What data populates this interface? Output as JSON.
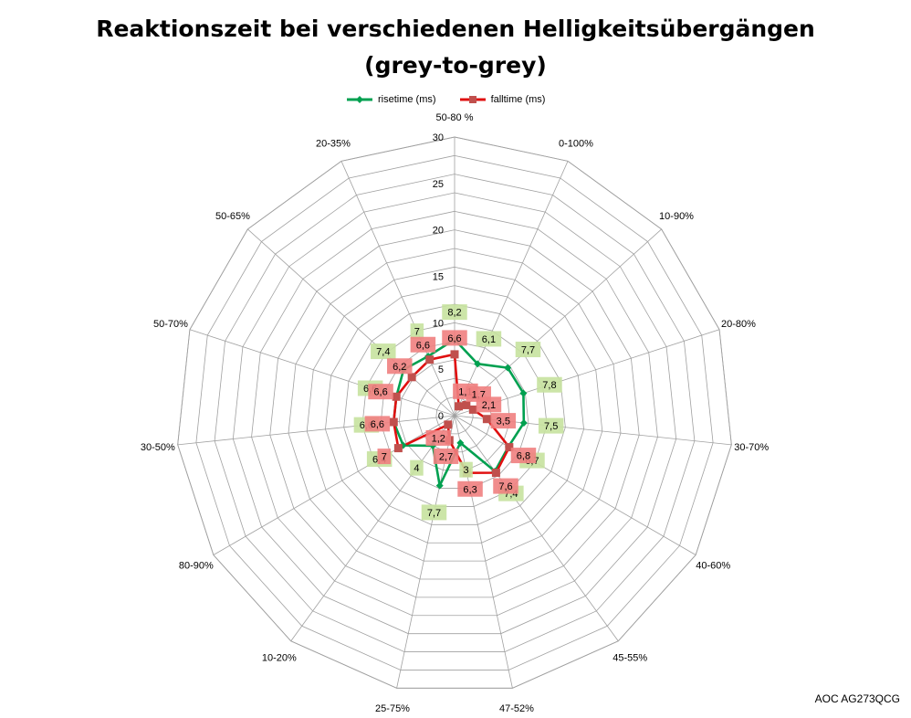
{
  "chart_data": {
    "type": "radar",
    "title": "Reaktionszeit bei verschiedenen Helligkeitsübergängen",
    "subtitle": "(grey-to-grey)",
    "categories": [
      "50-80 %",
      "0-100%",
      "10-90%",
      "20-80%",
      "30-70%",
      "40-60%",
      "45-55%",
      "47-52%",
      "25-75%",
      "10-20%",
      "80-90%",
      "30-50%",
      "50-70%",
      "50-65%",
      "20-35%"
    ],
    "series": [
      {
        "name": "risetime (ms)",
        "color": "#00a050",
        "marker": "diamond",
        "values": [
          8.2,
          6.1,
          7.7,
          7.8,
          7.5,
          6.7,
          7.4,
          3,
          7.7,
          4,
          6.4,
          6.6,
          6.6,
          7.4,
          7
        ]
      },
      {
        "name": "falltime (ms)",
        "color": "#e01010",
        "marker": "square",
        "values": [
          6.6,
          1.1,
          1.7,
          2.1,
          3.5,
          6.8,
          7.6,
          6.3,
          2.7,
          1.2,
          7,
          6.6,
          6.6,
          6.2,
          6.6
        ]
      }
    ],
    "data_label_colors": {
      "risetime (ms)": "#c6e29f",
      "falltime (ms)": "#f08080"
    },
    "rlim": [
      0,
      30
    ],
    "rticks": [
      0,
      5,
      10,
      15,
      20,
      25,
      30
    ],
    "grid": true,
    "legend": "top",
    "grid_color": "#a0a0a0"
  },
  "watermark": "AOC AG273QCG"
}
